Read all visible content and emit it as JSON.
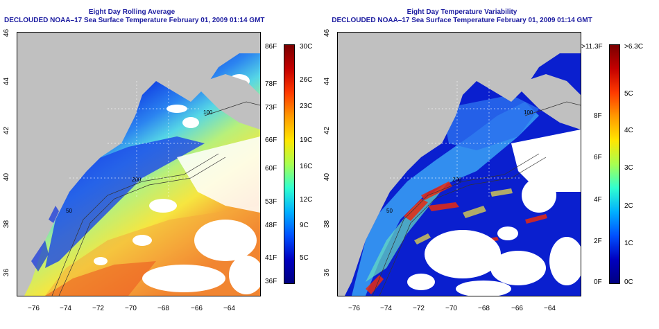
{
  "panels": [
    {
      "id": "avg",
      "title_line1": "Eight Day Rolling Average",
      "title_line2": "DECLOUDED NOAA–17 Sea Surface Temperature February 01, 2009 01:14 GMT",
      "colorbar_left_labels": [
        "86F",
        "78F",
        "73F",
        "66F",
        "60F",
        "53F",
        "48F",
        "41F",
        "36F"
      ],
      "colorbar_right_labels": [
        "30C",
        "26C",
        "23C",
        "19C",
        "16C",
        "12C",
        "9C",
        "5C"
      ],
      "contour_labels": [
        "100",
        "200",
        "50"
      ]
    },
    {
      "id": "var",
      "title_line1": "Eight Day Temperature Variability",
      "title_line2": "DECLOUDED NOAA–17 Sea Surface Temperature February 01, 2009 01:14 GMT",
      "colorbar_left_labels": [
        ">11.3F",
        "8F",
        "6F",
        "4F",
        "2F",
        "0F"
      ],
      "colorbar_right_labels": [
        ">6.3C",
        "5C",
        "4C",
        "3C",
        "2C",
        "1C",
        "0C"
      ],
      "contour_labels": [
        "100",
        "200",
        "50"
      ]
    }
  ],
  "lon_ticks": [
    "−76",
    "−74",
    "−72",
    "−70",
    "−68",
    "−66",
    "−64"
  ],
  "lat_ticks": [
    "46",
    "44",
    "42",
    "40",
    "38",
    "36"
  ],
  "colors": {
    "land": "#c0c0c0",
    "cloud": "#ffffff",
    "title": "#1c1ca0"
  }
}
